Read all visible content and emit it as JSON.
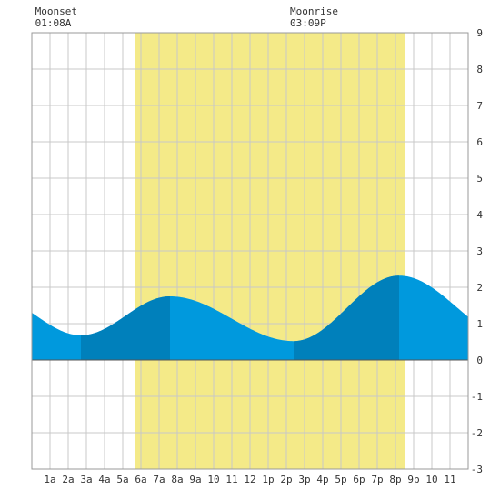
{
  "chart_data": {
    "type": "area",
    "title": "",
    "xlabel": "",
    "ylabel": "",
    "x_hours": [
      0,
      1,
      2,
      3,
      4,
      5,
      6,
      7,
      8,
      9,
      10,
      11,
      12,
      13,
      14,
      15,
      16,
      17,
      18,
      19,
      20,
      21,
      22,
      23,
      24
    ],
    "x_tick_labels": [
      "1a",
      "2a",
      "3a",
      "4a",
      "5a",
      "6a",
      "7a",
      "8a",
      "9a",
      "10",
      "11",
      "12",
      "1p",
      "2p",
      "3p",
      "4p",
      "5p",
      "6p",
      "7p",
      "8p",
      "9p",
      "10",
      "11"
    ],
    "x_tick_hours": [
      1,
      2,
      3,
      4,
      5,
      6,
      7,
      8,
      9,
      10,
      11,
      12,
      13,
      14,
      15,
      16,
      17,
      18,
      19,
      20,
      21,
      22,
      23
    ],
    "ylim": [
      -3,
      9
    ],
    "y_ticks": [
      -3,
      -2,
      -1,
      0,
      1,
      2,
      3,
      4,
      5,
      6,
      7,
      8,
      9
    ],
    "grid": true,
    "daylight_hours": [
      5.7,
      20.5
    ],
    "tide_extremes": [
      {
        "hour": 2.7,
        "value": 0.68
      },
      {
        "hour": 7.6,
        "value": 1.75
      },
      {
        "hour": 14.4,
        "value": 0.52
      },
      {
        "hour": 20.2,
        "value": 2.32
      }
    ],
    "start_value": 1.15,
    "end_value": 1.5,
    "rising_bands": [
      [
        2.7,
        7.6
      ],
      [
        14.4,
        20.2
      ]
    ],
    "annotations": [
      {
        "label": "Moonset",
        "time": "01:08A",
        "hour": 1.13
      },
      {
        "label": "Moonrise",
        "time": "03:09P",
        "hour": 15.15
      }
    ],
    "colors": {
      "daylight": "#f4ea88",
      "tide": "#0099dd",
      "tide_rising": "#0080bb",
      "grid": "#c8c8c8",
      "zero_line": "#555555"
    }
  }
}
